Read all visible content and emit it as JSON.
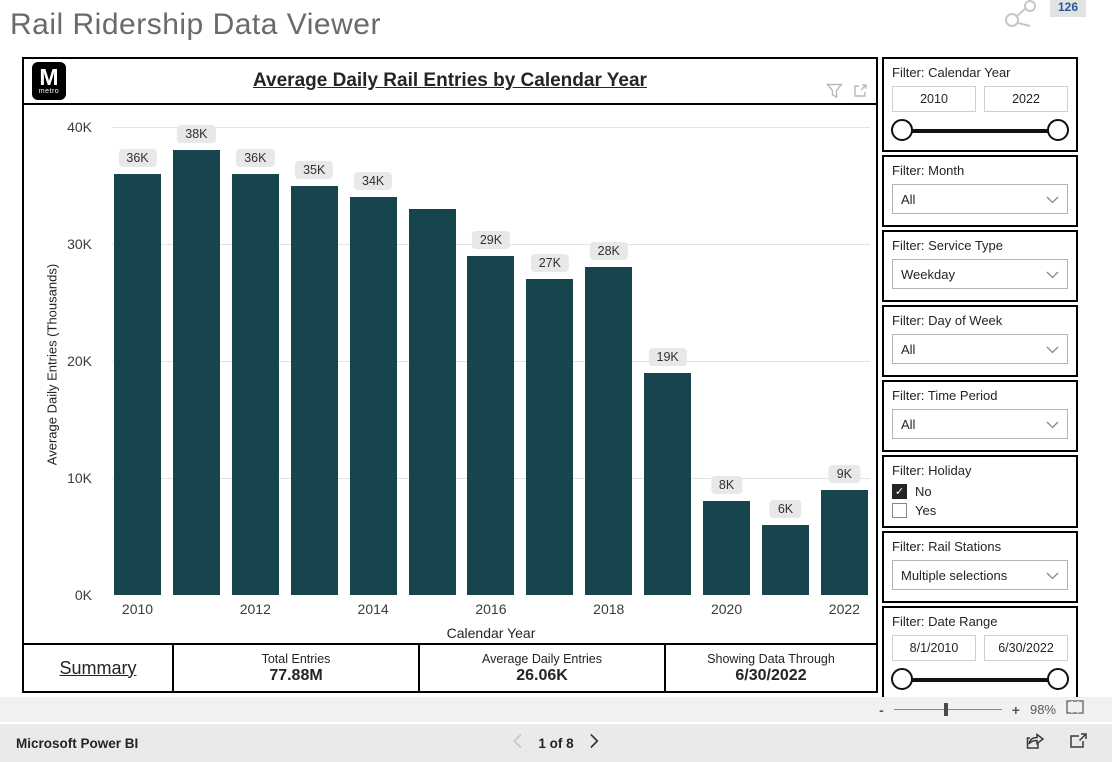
{
  "page": {
    "title": "Rail Ridership Data Viewer",
    "badge_count": "126"
  },
  "chart": {
    "logo": {
      "letter": "M",
      "text": "metro"
    },
    "title": "Average Daily Rail Entries by Calendar Year",
    "y_axis_title": "Average Daily Entries (Thousands)",
    "x_axis_title": "Calendar Year"
  },
  "chart_data": {
    "type": "bar",
    "title": "Average Daily Rail Entries by Calendar Year",
    "xlabel": "Calendar Year",
    "ylabel": "Average Daily Entries (Thousands)",
    "categories": [
      "2010",
      "2011",
      "2012",
      "2013",
      "2014",
      "2015",
      "2016",
      "2017",
      "2018",
      "2019",
      "2020",
      "2021",
      "2022"
    ],
    "values": [
      36,
      38,
      36,
      35,
      34,
      33,
      29,
      27,
      28,
      19,
      8,
      6,
      9
    ],
    "bar_labels": [
      "36K",
      "38K",
      "36K",
      "35K",
      "34K",
      null,
      "29K",
      "27K",
      "28K",
      "19K",
      "8K",
      "6K",
      "9K"
    ],
    "ylim": [
      0,
      40
    ],
    "y_ticks": [
      "0K",
      "10K",
      "20K",
      "30K",
      "40K"
    ],
    "x_ticks": [
      "2010",
      "2012",
      "2014",
      "2016",
      "2018",
      "2020",
      "2022"
    ],
    "grid": "horizontal",
    "legend": "none",
    "bar_color": "#16454e"
  },
  "summary": {
    "tab_label": "Summary",
    "cards": [
      {
        "label": "Total Entries",
        "value": "77.88M"
      },
      {
        "label": "Average Daily Entries",
        "value": "26.06K"
      },
      {
        "label": "Showing Data Through",
        "value": "6/30/2022"
      }
    ]
  },
  "filters": [
    {
      "label": "Filter: Calendar Year",
      "type": "range",
      "min": "2010",
      "max": "2022"
    },
    {
      "label": "Filter: Month",
      "type": "dropdown",
      "value": "All"
    },
    {
      "label": "Filter: Service Type",
      "type": "dropdown",
      "value": "Weekday"
    },
    {
      "label": "Filter: Day of Week",
      "type": "dropdown",
      "value": "All"
    },
    {
      "label": "Filter: Time Period",
      "type": "dropdown",
      "value": "All"
    },
    {
      "label": "Filter: Holiday",
      "type": "checkboxes",
      "options": [
        {
          "label": "No",
          "checked": true
        },
        {
          "label": "Yes",
          "checked": false
        }
      ]
    },
    {
      "label": "Filter: Rail Stations",
      "type": "dropdown",
      "value": "Multiple selections"
    },
    {
      "label": "Filter: Date Range",
      "type": "range",
      "min": "8/1/2010",
      "max": "6/30/2022"
    }
  ],
  "zoombar": {
    "minus": "-",
    "plus": "+",
    "percent": "98%"
  },
  "footer": {
    "brand": "Microsoft Power BI",
    "page_nav": "1 of 8"
  }
}
